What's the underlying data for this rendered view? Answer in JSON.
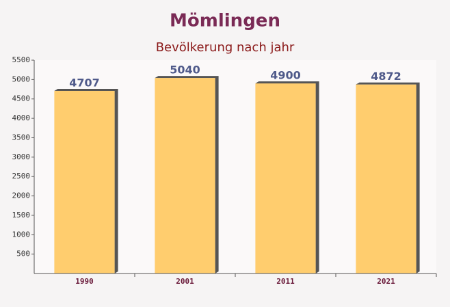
{
  "chart_data": {
    "type": "bar",
    "title": "Mömlingen",
    "subtitle": "Bevölkerung nach jahr",
    "categories": [
      "1990",
      "2001",
      "2011",
      "2021"
    ],
    "values": [
      4707,
      5040,
      4900,
      4872
    ],
    "color": "#ffc65a",
    "ylim": [
      0,
      5500
    ],
    "yticks": [
      500,
      1000,
      1500,
      2000,
      2500,
      3000,
      3500,
      4000,
      4500,
      5000,
      5500
    ],
    "grid": false
  }
}
